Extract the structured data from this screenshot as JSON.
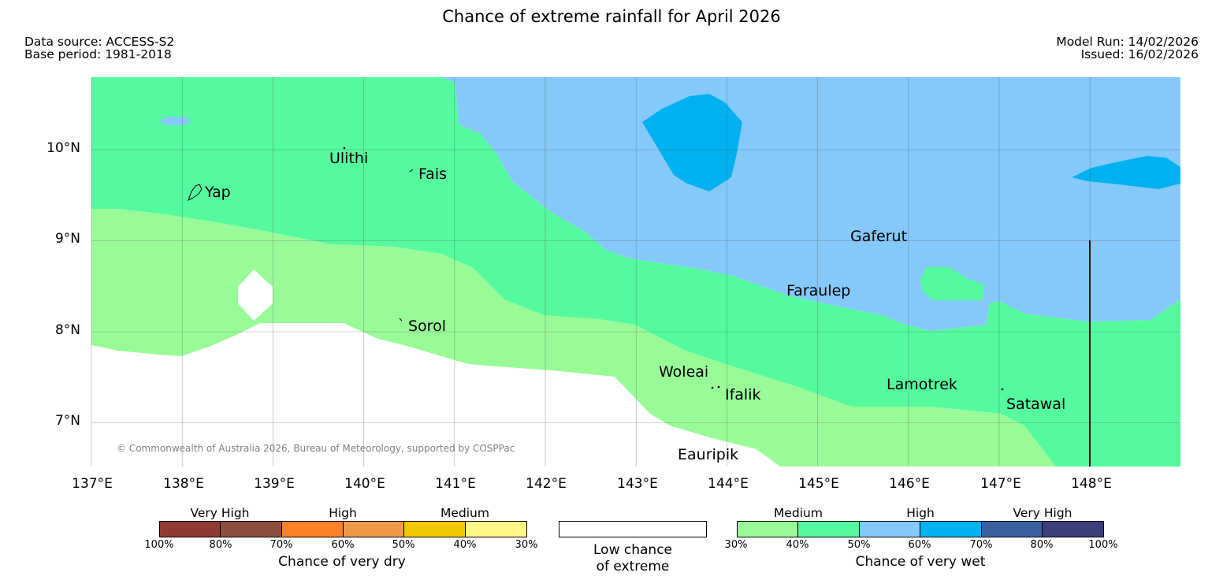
{
  "title": "Chance of extreme rainfall for April 2026",
  "meta": {
    "data_source": "Data source: ACCESS-S2",
    "base_period": "Base period: 1981-2018",
    "model_run": "Model Run: 14/02/2026",
    "issued": "Issued: 16/02/2026"
  },
  "map": {
    "lat_labels": [
      "10°N",
      "9°N",
      "8°N",
      "7°N"
    ],
    "lon_labels": [
      "137°E",
      "138°E",
      "139°E",
      "140°E",
      "141°E",
      "142°E",
      "143°E",
      "144°E",
      "145°E",
      "146°E",
      "147°E",
      "148°E"
    ],
    "places": {
      "ulithi": "Ulithi",
      "fais": "Fais",
      "yap": "Yap",
      "gaferut": "Gaferut",
      "faraulep": "Faraulep",
      "sorol": "Sorol",
      "woleai": "Woleai",
      "ifalik": "Ifalik",
      "lamotrek": "Lamotrek",
      "satawal": "Satawal",
      "eauripik": "Eauripik"
    },
    "copyright": "© Commonwealth of Australia 2026, Bureau of Meteorology, supported by COSPPac",
    "colors": {
      "medium_wet_light": "#99fb98",
      "medium_wet_dark": "#55fa9f",
      "high_wet_light": "#84c9fa",
      "high_wet_dark": "#02b1ef",
      "low": "#ffffff"
    }
  },
  "legend": {
    "dry": {
      "categories": [
        "Very High",
        "High",
        "Medium"
      ],
      "percents": [
        "100%",
        "80%",
        "70%",
        "60%",
        "50%",
        "40%",
        "30%"
      ],
      "colors": [
        "#8f3a32",
        "#8c4f3f",
        "#fc8127",
        "#ef9a48",
        "#f2c800",
        "#fef686"
      ],
      "title": "Chance of very dry"
    },
    "low": {
      "line1": "Low chance",
      "line2": "of extreme",
      "color": "#ffffff"
    },
    "wet": {
      "categories": [
        "Medium",
        "High",
        "Very High"
      ],
      "percents": [
        "30%",
        "40%",
        "50%",
        "60%",
        "70%",
        "80%",
        "100%"
      ],
      "colors": [
        "#99fb98",
        "#55fa9f",
        "#84c9fa",
        "#02b1ef",
        "#3b60a2",
        "#3b3e79"
      ],
      "title": "Chance of very wet"
    }
  }
}
